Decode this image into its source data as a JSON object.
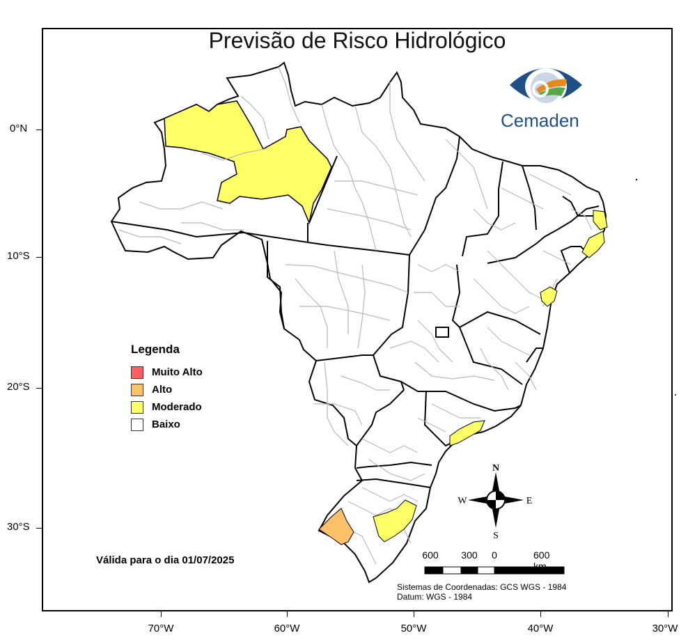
{
  "title": "Previsão de Risco Hidrológico",
  "logo": {
    "text": "Cemaden"
  },
  "axes": {
    "lat_labels": [
      "0°N",
      "10°S",
      "20°S",
      "30°S"
    ],
    "lon_labels": [
      "70°W",
      "60°W",
      "50°W",
      "40°W",
      "30°W"
    ]
  },
  "legend": {
    "title": "Legenda",
    "items": [
      {
        "label": "Muito Alto",
        "color": "#ff5f5f"
      },
      {
        "label": "Alto",
        "color": "#ffc06a"
      },
      {
        "label": "Moderado",
        "color": "#ffff66"
      },
      {
        "label": "Baixo",
        "color": "#ffffff"
      }
    ]
  },
  "valid_text": "Válida para o dia 01/07/2025",
  "compass": {
    "n": "N",
    "s": "S",
    "e": "E",
    "w": "W"
  },
  "scale_bar": {
    "labels": [
      "600",
      "300",
      "0",
      "600 km"
    ]
  },
  "coord_system": {
    "line1": "Sistemas de Coordenadas: GCS WGS - 1984",
    "line2": "Datum: WGS - 1984"
  },
  "colors": {
    "border": "#000000",
    "muni_border": "#b5b5b5",
    "moderado": "#ffff66",
    "alto": "#ffc06a"
  }
}
